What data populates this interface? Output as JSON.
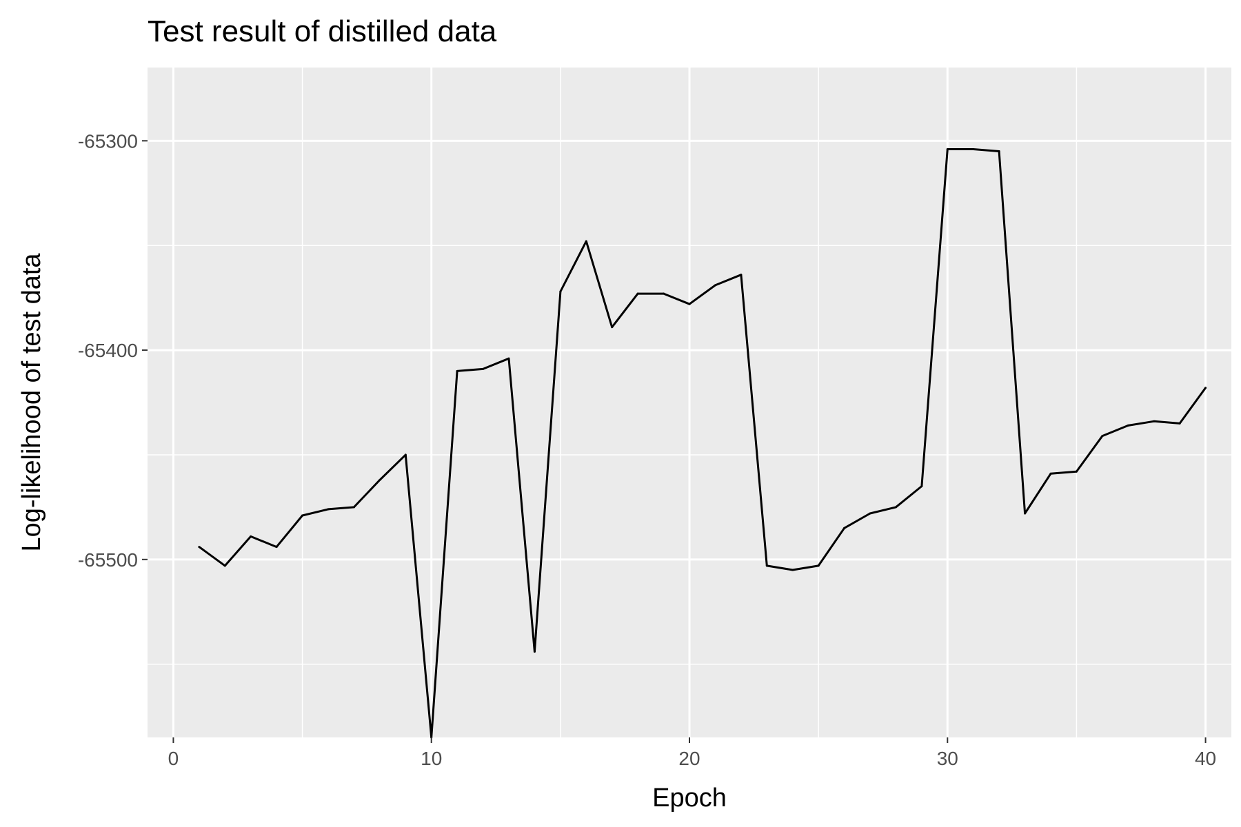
{
  "chart_data": {
    "type": "line",
    "title": "Test result of distilled data",
    "xlabel": "Epoch",
    "ylabel": "Log-likelihood of test data",
    "xlim": [
      -1,
      41
    ],
    "ylim": [
      -65585,
      -65265
    ],
    "x_ticks": [
      0,
      10,
      20,
      30,
      40
    ],
    "y_ticks": [
      -65300,
      -65400,
      -65500
    ],
    "x_tick_labels": [
      "0",
      "10",
      "20",
      "30",
      "40"
    ],
    "y_tick_labels": [
      "-65300",
      "-65400",
      "-65500"
    ],
    "grid": true,
    "legend": "none",
    "line_color": "#000000",
    "panel_background": "#ebebeb",
    "grid_color": "#ffffff",
    "series": [
      {
        "x": [
          1,
          2,
          3,
          4,
          5,
          6,
          7,
          8,
          9,
          10,
          11,
          12,
          13,
          14,
          15,
          16,
          17,
          18,
          19,
          20,
          21,
          22,
          23,
          24,
          25,
          26,
          27,
          28,
          29,
          30,
          31,
          32,
          33,
          34,
          35,
          36,
          37,
          38,
          39,
          40
        ],
        "values": [
          -65494,
          -65503,
          -65489,
          -65494,
          -65479,
          -65476,
          -65475,
          -65462,
          -65450,
          -65585,
          -65410,
          -65409,
          -65404,
          -65544,
          -65372,
          -65348,
          -65389,
          -65373,
          -65373,
          -65378,
          -65369,
          -65364,
          -65503,
          -65505,
          -65503,
          -65485,
          -65478,
          -65475,
          -65465,
          -65304,
          -65304,
          -65305,
          -65478,
          -65459,
          -65458,
          -65441,
          -65436,
          -65434,
          -65435,
          -65418
        ]
      }
    ]
  }
}
